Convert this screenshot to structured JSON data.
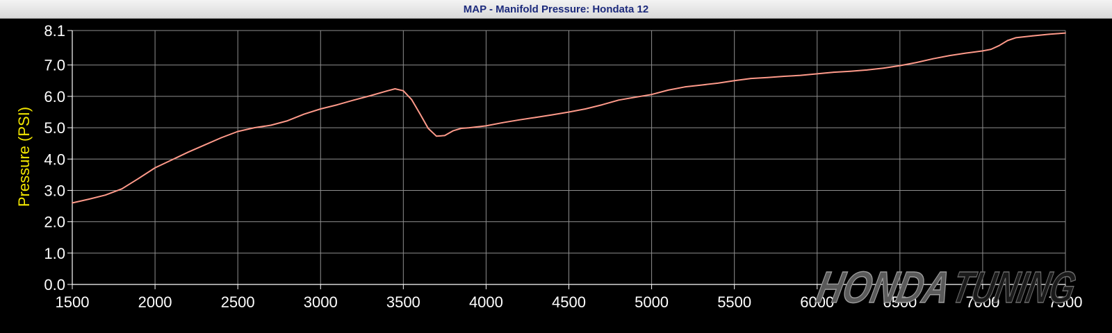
{
  "chart_data": {
    "type": "line",
    "title": "MAP - Manifold Pressure: Hondata 12",
    "xlabel": "",
    "ylabel": "Pressure (PSI)",
    "xlim": [
      1500,
      7500
    ],
    "ylim": [
      0,
      8.1
    ],
    "x_ticks": [
      "1500",
      "2000",
      "2500",
      "3000",
      "3500",
      "4000",
      "4500",
      "5000",
      "5500",
      "6000",
      "6500",
      "7000",
      "7500"
    ],
    "y_ticks": [
      "0.0",
      "1.0",
      "2.0",
      "3.0",
      "4.0",
      "5.0",
      "6.0",
      "7.0",
      "8.1"
    ],
    "grid": true,
    "colors": {
      "background": "#000000",
      "grid": "#8f8f8f",
      "line": "#ff9a8a",
      "ylabel": "#f2e600",
      "ticks": "#ffffff"
    },
    "series": [
      {
        "x": [
          1500,
          1600,
          1700,
          1800,
          1900,
          2000,
          2100,
          2200,
          2300,
          2400,
          2500,
          2600,
          2700,
          2800,
          2900,
          3000,
          3100,
          3200,
          3300,
          3400,
          3450,
          3500,
          3550,
          3600,
          3650,
          3700,
          3750,
          3800,
          3850,
          3900,
          4000,
          4100,
          4200,
          4300,
          4400,
          4500,
          4600,
          4700,
          4800,
          4900,
          5000,
          5100,
          5200,
          5300,
          5400,
          5500,
          5600,
          5700,
          5800,
          5900,
          6000,
          6100,
          6200,
          6300,
          6400,
          6500,
          6600,
          6700,
          6800,
          6900,
          7000,
          7050,
          7100,
          7150,
          7200,
          7300,
          7400,
          7450,
          7500
        ],
        "y": [
          2.6,
          2.72,
          2.85,
          3.05,
          3.38,
          3.72,
          3.97,
          4.22,
          4.45,
          4.68,
          4.88,
          5.0,
          5.08,
          5.22,
          5.43,
          5.6,
          5.73,
          5.88,
          6.02,
          6.17,
          6.24,
          6.18,
          5.9,
          5.45,
          4.98,
          4.73,
          4.75,
          4.9,
          4.98,
          5.0,
          5.06,
          5.16,
          5.25,
          5.33,
          5.41,
          5.5,
          5.6,
          5.73,
          5.88,
          5.97,
          6.06,
          6.2,
          6.3,
          6.36,
          6.42,
          6.5,
          6.57,
          6.6,
          6.64,
          6.67,
          6.72,
          6.77,
          6.8,
          6.84,
          6.9,
          6.98,
          7.08,
          7.2,
          7.3,
          7.38,
          7.45,
          7.5,
          7.62,
          7.78,
          7.87,
          7.93,
          7.98,
          8.0,
          8.02
        ]
      }
    ]
  },
  "watermark": {
    "word1": "HONDA",
    "word2": "TUNING"
  }
}
